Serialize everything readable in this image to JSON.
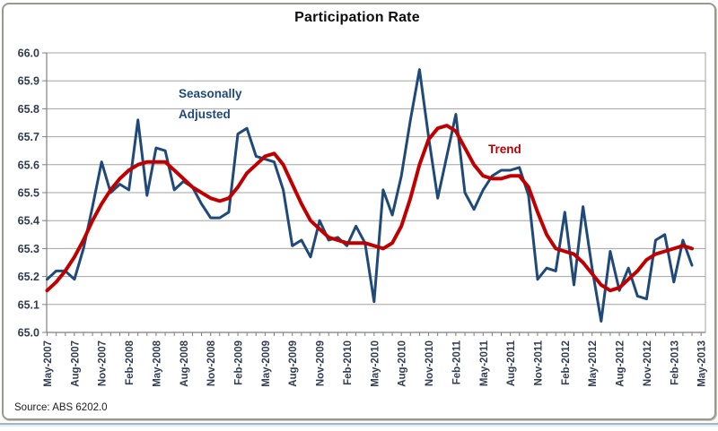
{
  "page": {
    "source_note": "Source: ABS 6202.0"
  },
  "chart_data": {
    "type": "line",
    "title": "Participation Rate",
    "xlabel": "",
    "ylabel": "",
    "ylim": [
      65.0,
      66.0
    ],
    "grid": "horizontal",
    "legend_position": "none",
    "y_tick_labels": [
      "66.0",
      "65.9",
      "65.8",
      "65.7",
      "65.6",
      "65.5",
      "65.4",
      "65.3",
      "65.2",
      "65.1",
      "65.0"
    ],
    "x_tick_labels": [
      "May-2007",
      "Aug-2007",
      "Nov-2007",
      "Feb-2008",
      "May-2008",
      "Aug-2008",
      "Nov-2008",
      "Feb-2009",
      "May-2009",
      "Aug-2009",
      "Nov-2009",
      "Feb-2010",
      "May-2010",
      "Aug-2010",
      "Nov-2010",
      "Feb-2011",
      "May-2011",
      "Aug-2011",
      "Nov-2011",
      "Feb-2012",
      "May-2012",
      "Aug-2012",
      "Nov-2012",
      "Feb-2013",
      "May-2013"
    ],
    "months": [
      "May-2007",
      "Jun-2007",
      "Jul-2007",
      "Aug-2007",
      "Sep-2007",
      "Oct-2007",
      "Nov-2007",
      "Dec-2007",
      "Jan-2008",
      "Feb-2008",
      "Mar-2008",
      "Apr-2008",
      "May-2008",
      "Jun-2008",
      "Jul-2008",
      "Aug-2008",
      "Sep-2008",
      "Oct-2008",
      "Nov-2008",
      "Dec-2008",
      "Jan-2009",
      "Feb-2009",
      "Mar-2009",
      "Apr-2009",
      "May-2009",
      "Jun-2009",
      "Jul-2009",
      "Aug-2009",
      "Sep-2009",
      "Oct-2009",
      "Nov-2009",
      "Dec-2009",
      "Jan-2010",
      "Feb-2010",
      "Mar-2010",
      "Apr-2010",
      "May-2010",
      "Jun-2010",
      "Jul-2010",
      "Aug-2010",
      "Sep-2010",
      "Oct-2010",
      "Nov-2010",
      "Dec-2010",
      "Jan-2011",
      "Feb-2011",
      "Mar-2011",
      "Apr-2011",
      "May-2011",
      "Jun-2011",
      "Jul-2011",
      "Aug-2011",
      "Sep-2011",
      "Oct-2011",
      "Nov-2011",
      "Dec-2011",
      "Jan-2012",
      "Feb-2012",
      "Mar-2012",
      "Apr-2012",
      "May-2012",
      "Jun-2012",
      "Jul-2012",
      "Aug-2012",
      "Sep-2012",
      "Oct-2012",
      "Nov-2012",
      "Dec-2012",
      "Jan-2013",
      "Feb-2013",
      "Mar-2013",
      "Apr-2013"
    ],
    "series": [
      {
        "name": "Seasonally Adjusted",
        "color": "#1f4979",
        "stroke_width": 3,
        "values": [
          65.19,
          65.22,
          65.22,
          65.19,
          65.3,
          65.45,
          65.61,
          65.5,
          65.53,
          65.51,
          65.76,
          65.49,
          65.66,
          65.65,
          65.51,
          65.54,
          65.52,
          65.46,
          65.41,
          65.41,
          65.43,
          65.71,
          65.73,
          65.63,
          65.62,
          65.61,
          65.51,
          65.31,
          65.33,
          65.27,
          65.4,
          65.33,
          65.34,
          65.31,
          65.38,
          65.32,
          65.11,
          65.51,
          65.42,
          65.56,
          65.76,
          65.94,
          65.7,
          65.48,
          65.63,
          65.78,
          65.5,
          65.44,
          65.51,
          65.56,
          65.58,
          65.58,
          65.59,
          65.49,
          65.19,
          65.23,
          65.22,
          65.43,
          65.17,
          65.45,
          65.23,
          65.04,
          65.29,
          65.15,
          65.23,
          65.13,
          65.12,
          65.33,
          65.35,
          65.18,
          65.33,
          65.24
        ]
      },
      {
        "name": "Trend",
        "color": "#c00000",
        "stroke_width": 4,
        "values": [
          65.15,
          65.18,
          65.22,
          65.27,
          65.33,
          65.4,
          65.46,
          65.51,
          65.55,
          65.58,
          65.6,
          65.61,
          65.61,
          65.61,
          65.58,
          65.55,
          65.52,
          65.5,
          65.48,
          65.47,
          65.48,
          65.52,
          65.57,
          65.6,
          65.63,
          65.64,
          65.6,
          65.53,
          65.46,
          65.4,
          65.37,
          65.34,
          65.33,
          65.32,
          65.32,
          65.32,
          65.31,
          65.3,
          65.32,
          65.38,
          65.48,
          65.6,
          65.69,
          65.73,
          65.74,
          65.72,
          65.66,
          65.6,
          65.56,
          65.55,
          65.55,
          65.56,
          65.56,
          65.52,
          65.43,
          65.35,
          65.3,
          65.29,
          65.28,
          65.25,
          65.21,
          65.17,
          65.15,
          65.16,
          65.19,
          65.22,
          65.26,
          65.28,
          65.29,
          65.3,
          65.31,
          65.3
        ]
      }
    ],
    "annotations": {
      "seasonally_adjusted": {
        "line1": "Seasonally",
        "line2": "Adjusted"
      },
      "trend": {
        "label": "Trend"
      }
    },
    "colors": {
      "gridline": "#a3a3a3",
      "axis": "#7f7f7f",
      "tick_label": "#313c52"
    }
  }
}
